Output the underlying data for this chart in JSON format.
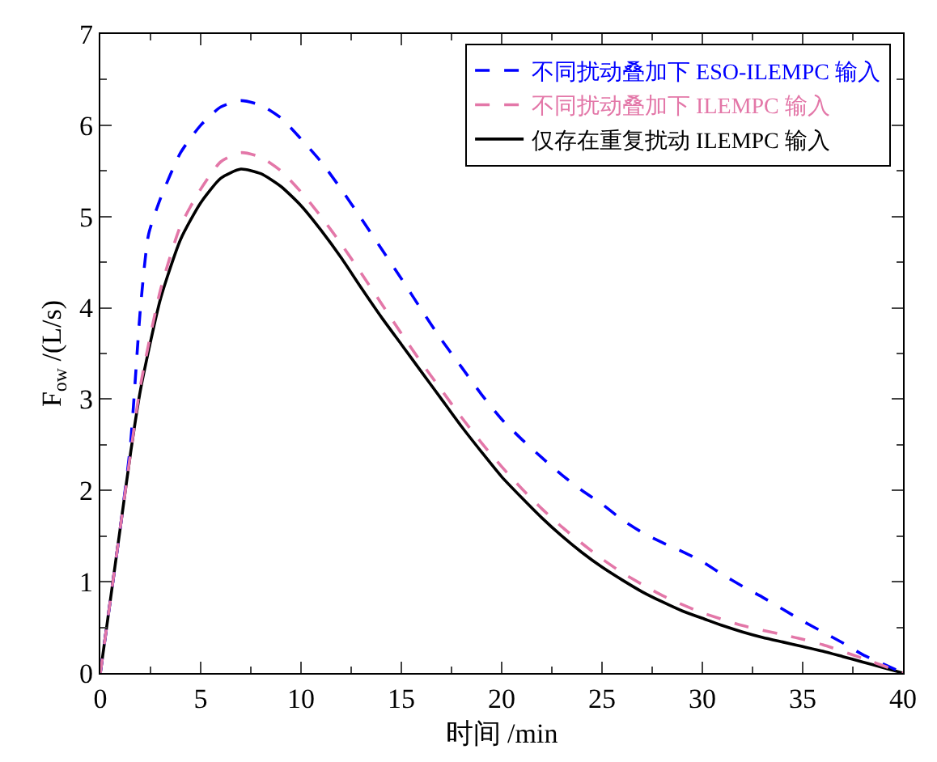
{
  "chart_data": {
    "type": "line",
    "xlabel": "时间 /min",
    "ylabel": "F$_{ow}$ /(L/s)",
    "xlim": [
      0,
      40
    ],
    "ylim": [
      0,
      7
    ],
    "xticks": [
      0,
      {
        "value": 2.5,
        "label": null
      },
      5,
      {
        "value": 7.5,
        "label": null
      },
      10,
      {
        "value": 12.5,
        "label": null
      },
      15,
      {
        "value": 17.5,
        "label": null
      },
      20,
      {
        "value": 22.5,
        "label": null
      },
      25,
      {
        "value": 27.5,
        "label": null
      },
      30,
      {
        "value": 32.5,
        "label": null
      },
      35,
      {
        "value": 37.5,
        "label": null
      },
      40
    ],
    "yticks": [
      0,
      {
        "value": 0.5,
        "label": null
      },
      1,
      {
        "value": 1.5,
        "label": null
      },
      2,
      {
        "value": 2.5,
        "label": null
      },
      3,
      {
        "value": 3.5,
        "label": null
      },
      4,
      {
        "value": 4.5,
        "label": null
      },
      5,
      {
        "value": 5.5,
        "label": null
      },
      6,
      {
        "value": 6.5,
        "label": null
      },
      7
    ],
    "grid": false,
    "legend": "top right",
    "marker": "none",
    "series": [
      {
        "name": "不同扰动叠加下 ESO-ILEMPC 输入",
        "color": "#0000ff",
        "line_style": "dashed",
        "x": [
          0,
          0.5,
          1,
          1.5,
          2,
          2.4,
          3,
          4,
          5,
          6,
          7,
          8,
          9,
          10,
          11,
          12,
          13,
          14,
          15,
          16,
          17,
          18,
          19,
          20,
          21,
          22,
          23,
          24,
          25,
          26,
          27,
          28,
          29,
          30,
          31,
          32,
          33,
          34,
          35,
          36,
          37,
          38,
          39,
          40
        ],
        "values": [
          0,
          0.8,
          1.6,
          2.5,
          4.0,
          4.8,
          5.2,
          5.7,
          6.0,
          6.2,
          6.27,
          6.22,
          6.08,
          5.85,
          5.6,
          5.3,
          4.98,
          4.65,
          4.32,
          3.98,
          3.65,
          3.35,
          3.05,
          2.78,
          2.56,
          2.36,
          2.17,
          2.0,
          1.85,
          1.68,
          1.54,
          1.43,
          1.33,
          1.22,
          1.08,
          0.95,
          0.83,
          0.7,
          0.57,
          0.45,
          0.33,
          0.2,
          0.1,
          0
        ]
      },
      {
        "name": "不同扰动叠加下 ILEMPC 输入",
        "color": "#e377a8",
        "line_style": "dashed",
        "x": [
          0,
          0.5,
          1,
          1.5,
          2,
          3,
          4,
          5,
          6,
          7,
          8,
          9,
          10,
          11,
          12,
          13,
          14,
          15,
          16,
          17,
          18,
          19,
          20,
          21,
          22,
          23,
          24,
          25,
          26,
          27,
          28,
          29,
          30,
          32,
          34,
          35,
          36,
          38,
          40
        ],
        "values": [
          0,
          0.8,
          1.6,
          2.4,
          3.15,
          4.2,
          4.9,
          5.3,
          5.6,
          5.7,
          5.65,
          5.5,
          5.27,
          5.0,
          4.7,
          4.38,
          4.05,
          3.72,
          3.4,
          3.1,
          2.8,
          2.52,
          2.26,
          2.02,
          1.8,
          1.6,
          1.42,
          1.25,
          1.1,
          0.97,
          0.85,
          0.75,
          0.66,
          0.52,
          0.42,
          0.37,
          0.31,
          0.16,
          0
        ]
      },
      {
        "name": "仅存在重复扰动 ILEMPC 输入",
        "color": "#000000",
        "line_style": "solid",
        "x": [
          0,
          0.5,
          1,
          1.5,
          2,
          3,
          4,
          5,
          6,
          7,
          8,
          9,
          10,
          11,
          12,
          13,
          14,
          15,
          16,
          17,
          18,
          19,
          20,
          21,
          22,
          23,
          24,
          25,
          26,
          27,
          28,
          29,
          30,
          31,
          32,
          33,
          34,
          35,
          36,
          37,
          38,
          39,
          40
        ],
        "values": [
          0,
          0.8,
          1.6,
          2.4,
          3.1,
          4.1,
          4.75,
          5.15,
          5.42,
          5.52,
          5.47,
          5.33,
          5.12,
          4.85,
          4.55,
          4.22,
          3.9,
          3.6,
          3.3,
          3.0,
          2.7,
          2.42,
          2.15,
          1.92,
          1.7,
          1.5,
          1.32,
          1.16,
          1.02,
          0.89,
          0.78,
          0.68,
          0.6,
          0.52,
          0.45,
          0.39,
          0.34,
          0.29,
          0.24,
          0.18,
          0.12,
          0.06,
          0
        ]
      }
    ]
  }
}
